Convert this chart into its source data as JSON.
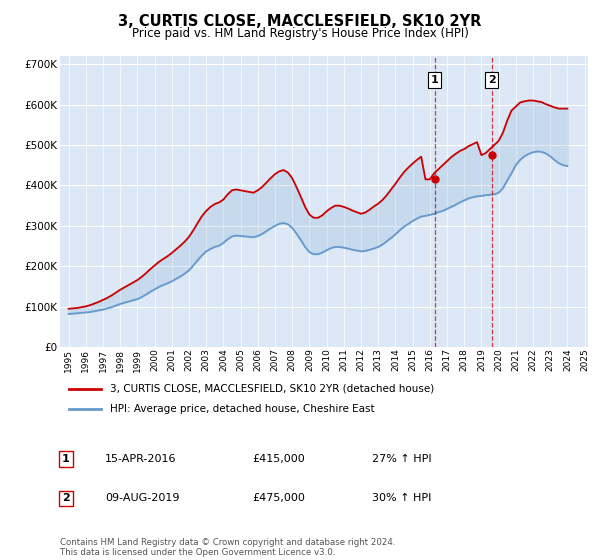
{
  "title": "3, CURTIS CLOSE, MACCLESFIELD, SK10 2YR",
  "subtitle": "Price paid vs. HM Land Registry's House Price Index (HPI)",
  "ylim": [
    0,
    720000
  ],
  "yticks": [
    0,
    100000,
    200000,
    300000,
    400000,
    500000,
    600000,
    700000
  ],
  "plot_background": "#dce8f5",
  "legend_label_red": "3, CURTIS CLOSE, MACCLESFIELD, SK10 2YR (detached house)",
  "legend_label_blue": "HPI: Average price, detached house, Cheshire East",
  "transaction1_date": "15-APR-2016",
  "transaction1_price": "£415,000",
  "transaction1_info": "27% ↑ HPI",
  "transaction2_date": "09-AUG-2019",
  "transaction2_price": "£475,000",
  "transaction2_info": "30% ↑ HPI",
  "footer": "Contains HM Land Registry data © Crown copyright and database right 2024.\nThis data is licensed under the Open Government Licence v3.0.",
  "red_color": "#cc0000",
  "blue_color": "#6699cc",
  "transaction1_x": 2016.29,
  "transaction2_x": 2019.6,
  "transaction1_y": 415000,
  "transaction2_y": 475000,
  "hpi_years": [
    1995,
    1995.25,
    1995.5,
    1995.75,
    1996,
    1996.25,
    1996.5,
    1996.75,
    1997,
    1997.25,
    1997.5,
    1997.75,
    1998,
    1998.25,
    1998.5,
    1998.75,
    1999,
    1999.25,
    1999.5,
    1999.75,
    2000,
    2000.25,
    2000.5,
    2000.75,
    2001,
    2001.25,
    2001.5,
    2001.75,
    2002,
    2002.25,
    2002.5,
    2002.75,
    2003,
    2003.25,
    2003.5,
    2003.75,
    2004,
    2004.25,
    2004.5,
    2004.75,
    2005,
    2005.25,
    2005.5,
    2005.75,
    2006,
    2006.25,
    2006.5,
    2006.75,
    2007,
    2007.25,
    2007.5,
    2007.75,
    2008,
    2008.25,
    2008.5,
    2008.75,
    2009,
    2009.25,
    2009.5,
    2009.75,
    2010,
    2010.25,
    2010.5,
    2010.75,
    2011,
    2011.25,
    2011.5,
    2011.75,
    2012,
    2012.25,
    2012.5,
    2012.75,
    2013,
    2013.25,
    2013.5,
    2013.75,
    2014,
    2014.25,
    2014.5,
    2014.75,
    2015,
    2015.25,
    2015.5,
    2015.75,
    2016,
    2016.25,
    2016.5,
    2016.75,
    2017,
    2017.25,
    2017.5,
    2017.75,
    2018,
    2018.25,
    2018.5,
    2018.75,
    2019,
    2019.25,
    2019.5,
    2019.75,
    2020,
    2020.25,
    2020.5,
    2020.75,
    2021,
    2021.25,
    2021.5,
    2021.75,
    2022,
    2022.25,
    2022.5,
    2022.75,
    2023,
    2023.25,
    2023.5,
    2023.75,
    2024
  ],
  "hpi_values": [
    82000,
    83000,
    84000,
    85000,
    86000,
    87000,
    89000,
    91000,
    93000,
    96000,
    99000,
    103000,
    107000,
    110000,
    113000,
    116000,
    119000,
    124000,
    130000,
    137000,
    143000,
    149000,
    154000,
    158000,
    163000,
    169000,
    175000,
    182000,
    190000,
    202000,
    215000,
    227000,
    237000,
    243000,
    248000,
    251000,
    258000,
    267000,
    274000,
    276000,
    275000,
    274000,
    273000,
    272000,
    275000,
    280000,
    287000,
    294000,
    300000,
    305000,
    307000,
    304000,
    295000,
    281000,
    265000,
    248000,
    235000,
    230000,
    230000,
    234000,
    240000,
    245000,
    248000,
    248000,
    246000,
    244000,
    241000,
    239000,
    237000,
    238000,
    241000,
    244000,
    248000,
    254000,
    262000,
    270000,
    279000,
    289000,
    298000,
    305000,
    312000,
    318000,
    323000,
    325000,
    327000,
    330000,
    334000,
    337000,
    342000,
    347000,
    352000,
    358000,
    363000,
    368000,
    371000,
    373000,
    374000,
    376000,
    377000,
    378000,
    382000,
    393000,
    412000,
    430000,
    450000,
    463000,
    472000,
    478000,
    482000,
    484000,
    483000,
    479000,
    472000,
    463000,
    455000,
    450000,
    448000
  ],
  "red_years": [
    1995,
    1995.25,
    1995.5,
    1995.75,
    1996,
    1996.25,
    1996.5,
    1996.75,
    1997,
    1997.25,
    1997.5,
    1997.75,
    1998,
    1998.25,
    1998.5,
    1998.75,
    1999,
    1999.25,
    1999.5,
    1999.75,
    2000,
    2000.25,
    2000.5,
    2000.75,
    2001,
    2001.25,
    2001.5,
    2001.75,
    2002,
    2002.25,
    2002.5,
    2002.75,
    2003,
    2003.25,
    2003.5,
    2003.75,
    2004,
    2004.25,
    2004.5,
    2004.75,
    2005,
    2005.25,
    2005.5,
    2005.75,
    2006,
    2006.25,
    2006.5,
    2006.75,
    2007,
    2007.25,
    2007.5,
    2007.75,
    2008,
    2008.25,
    2008.5,
    2008.75,
    2009,
    2009.25,
    2009.5,
    2009.75,
    2010,
    2010.25,
    2010.5,
    2010.75,
    2011,
    2011.25,
    2011.5,
    2011.75,
    2012,
    2012.25,
    2012.5,
    2012.75,
    2013,
    2013.25,
    2013.5,
    2013.75,
    2014,
    2014.25,
    2014.5,
    2014.75,
    2015,
    2015.25,
    2015.5,
    2015.75,
    2016,
    2016.25,
    2016.5,
    2016.75,
    2017,
    2017.25,
    2017.5,
    2017.75,
    2018,
    2018.25,
    2018.5,
    2018.75,
    2019,
    2019.25,
    2019.5,
    2019.75,
    2020,
    2020.25,
    2020.5,
    2020.75,
    2021,
    2021.25,
    2021.5,
    2021.75,
    2022,
    2022.25,
    2022.5,
    2022.75,
    2023,
    2023.25,
    2023.5,
    2023.75,
    2024
  ],
  "red_values": [
    95000,
    96000,
    97000,
    99000,
    101000,
    104000,
    108000,
    112000,
    117000,
    122000,
    128000,
    135000,
    142000,
    148000,
    154000,
    160000,
    166000,
    174000,
    183000,
    193000,
    202000,
    211000,
    218000,
    225000,
    233000,
    242000,
    251000,
    261000,
    273000,
    289000,
    307000,
    324000,
    337000,
    347000,
    354000,
    358000,
    365000,
    378000,
    388000,
    390000,
    388000,
    386000,
    384000,
    382000,
    388000,
    396000,
    407000,
    418000,
    428000,
    435000,
    438000,
    432000,
    418000,
    396000,
    372000,
    347000,
    328000,
    320000,
    320000,
    326000,
    336000,
    344000,
    350000,
    350000,
    347000,
    343000,
    338000,
    334000,
    330000,
    333000,
    340000,
    348000,
    355000,
    364000,
    376000,
    390000,
    404000,
    419000,
    433000,
    444000,
    454000,
    463000,
    471000,
    415000,
    415000,
    430000,
    440000,
    450000,
    460000,
    470000,
    478000,
    485000,
    490000,
    497000,
    502000,
    507000,
    475000,
    480000,
    490000,
    500000,
    510000,
    530000,
    560000,
    585000,
    595000,
    605000,
    608000,
    610000,
    610000,
    608000,
    606000,
    601000,
    597000,
    593000,
    590000,
    590000,
    590000
  ],
  "xlim_left": 1994.5,
  "xlim_right": 2025.2
}
